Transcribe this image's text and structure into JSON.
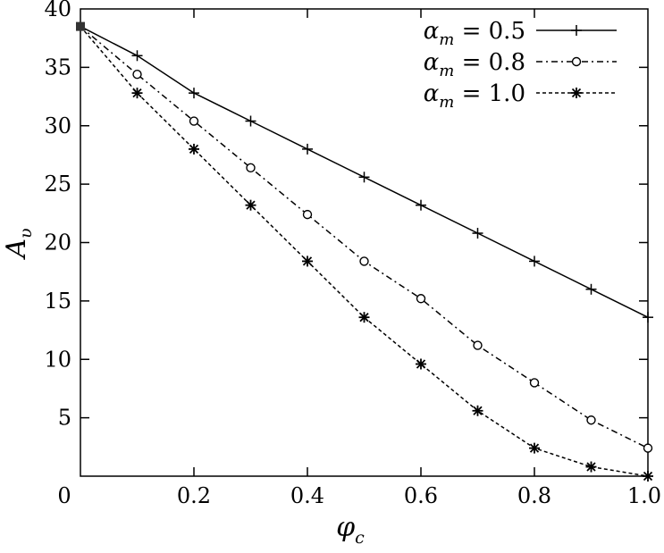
{
  "chart_data": {
    "type": "line",
    "xlabel": "φ",
    "xlabel_sub": "c",
    "ylabel": "A",
    "ylabel_sub": "υ",
    "xlim": [
      0,
      1
    ],
    "ylim": [
      0,
      40
    ],
    "x_ticks": [
      0,
      0.2,
      0.4,
      0.6,
      0.8,
      1.0
    ],
    "x_tick_labels": [
      "0",
      "0.2",
      "0.4",
      "0.6",
      "0.8",
      "1.0"
    ],
    "y_ticks": [
      5,
      10,
      15,
      20,
      25,
      30,
      35,
      40
    ],
    "y_tick_labels": [
      "5",
      "10",
      "15",
      "20",
      "25",
      "30",
      "35",
      "40"
    ],
    "grid": false,
    "legend_position": "top-right",
    "series": [
      {
        "name": "α_m = 0.5",
        "legend": {
          "alpha": "α",
          "sub": "m",
          "value": " = 0.5"
        },
        "marker": "plus",
        "dash": "solid",
        "x": [
          0,
          0.1,
          0.2,
          0.3,
          0.4,
          0.5,
          0.6,
          0.7,
          0.8,
          0.9,
          1.0
        ],
        "y": [
          38.5,
          36.0,
          32.8,
          30.4,
          28.0,
          25.6,
          23.2,
          20.8,
          18.4,
          16.0,
          13.6
        ]
      },
      {
        "name": "α_m = 0.8",
        "legend": {
          "alpha": "α",
          "sub": "m",
          "value": " = 0.8"
        },
        "marker": "circle",
        "dash": "dashdot",
        "x": [
          0,
          0.1,
          0.2,
          0.3,
          0.4,
          0.5,
          0.6,
          0.7,
          0.8,
          0.9,
          1.0
        ],
        "y": [
          38.5,
          34.4,
          30.4,
          26.4,
          22.4,
          18.4,
          15.2,
          11.2,
          8.0,
          4.8,
          2.4
        ]
      },
      {
        "name": "α_m = 1.0",
        "legend": {
          "alpha": "α",
          "sub": "m",
          "value": " = 1.0"
        },
        "marker": "star",
        "dash": "dotted",
        "x": [
          0,
          0.1,
          0.2,
          0.3,
          0.4,
          0.5,
          0.6,
          0.7,
          0.8,
          0.9,
          1.0
        ],
        "y": [
          38.5,
          32.8,
          28.0,
          23.2,
          18.4,
          13.6,
          9.6,
          5.6,
          2.4,
          0.8,
          0.0
        ]
      }
    ]
  }
}
